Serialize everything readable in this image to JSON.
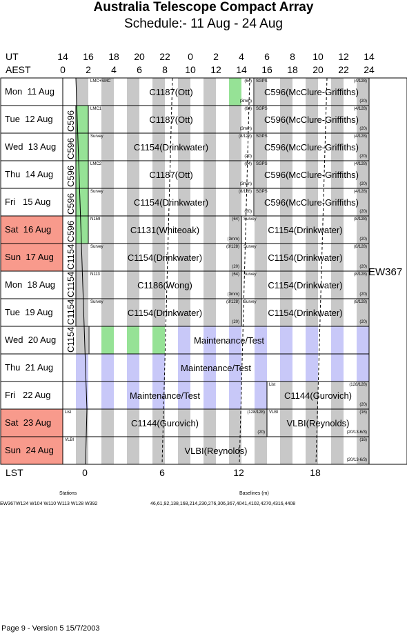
{
  "header": {
    "title": "Australia Telescope Compact Array",
    "subtitle": "Schedule:- 11 Aug - 24 Aug"
  },
  "axes": {
    "ut_label": "UT",
    "aest_label": "AEST",
    "lst_label": "LST",
    "ut_ticks": [
      "14",
      "16",
      "18",
      "20",
      "22",
      "0",
      "2",
      "4",
      "6",
      "8",
      "10",
      "12",
      "14"
    ],
    "aest_ticks": [
      "0",
      "2",
      "4",
      "6",
      "8",
      "10",
      "12",
      "14",
      "16",
      "18",
      "20",
      "22",
      "24"
    ],
    "lst_ticks": [
      "0",
      "6",
      "12",
      "18"
    ]
  },
  "days": [
    {
      "label": "Mon  11 Aug",
      "weekend": false
    },
    {
      "label": "Tue  12 Aug",
      "weekend": false
    },
    {
      "label": "Wed  13 Aug",
      "weekend": false
    },
    {
      "label": "Thu  14 Aug",
      "weekend": false
    },
    {
      "label": "Fri   15 Aug",
      "weekend": false
    },
    {
      "label": "Sat  16 Aug",
      "weekend": true
    },
    {
      "label": "Sun  17 Aug",
      "weekend": true
    },
    {
      "label": "Mon  18 Aug",
      "weekend": false
    },
    {
      "label": "Tue  19 Aug",
      "weekend": false
    },
    {
      "label": "Wed  20 Aug",
      "weekend": false
    },
    {
      "label": "Thu  21 Aug",
      "weekend": false
    },
    {
      "label": "Fri   22 Aug",
      "weekend": false
    },
    {
      "label": "Sat  23 Aug",
      "weekend": true
    },
    {
      "label": "Sun  24 Aug",
      "weekend": true
    }
  ],
  "projects": {
    "r0a": "C1187(Ott)",
    "r0b": "C596(McClure-Griffiths)",
    "r1a": "C1187(Ott)",
    "r1b": "C596(McClure-Griffiths)",
    "r2a": "C1154(Drinkwater)",
    "r2b": "C596(McClure-Griffiths)",
    "r3a": "C1187(Ott)",
    "r3b": "C596(McClure-Griffiths)",
    "r4a": "C1154(Drinkwater)",
    "r4b": "C596(McClure-Griffiths)",
    "r5a": "C1131(Whiteoak)",
    "r5b": "C1154(Drinkwater)",
    "r6a": "C1154(Drinkwater)",
    "r6b": "C1154(Drinkwater)",
    "r7a": "C1186(Wong)",
    "r7b": "C1154(Drinkwater)",
    "r8a": "C1154(Drinkwater)",
    "r8b": "C1154(Drinkwater)",
    "r9": "Maintenance/Test",
    "r10": "Maintenance/Test",
    "r11a": "Maintenance/Test",
    "r11b": "C1144(Gurovich)",
    "r12a": "C1144(Gurovich)",
    "r12b": "VLBI(Reynolds)",
    "r13": "VLBI(Reynolds)",
    "v1": "C596",
    "v2": "C596",
    "v3": "C596",
    "v4": "C596",
    "v5": "C596",
    "v6": "C1154",
    "v7": "C1154",
    "v8": "C1154",
    "v9": "C1154",
    "side": "EW367"
  },
  "tags": {
    "r0a": "LMC+SMC",
    "r0a_tr": "(64)",
    "r0a_br": "(3mm)",
    "r0b": "SGPS",
    "r0b_tr": "(4/128)",
    "r0b_br": "(20)",
    "r1a": "LMC1",
    "r1a_tr": "(64)",
    "r1a_br": "(3mm)",
    "r1b": "SGPS",
    "r1b_tr": "(4/128)",
    "r1b_br": "(20)",
    "r2a": "Survey",
    "r2a_tr": "(8/128)",
    "r2a_br": "(20)",
    "r2b": "SGPS",
    "r2b_tr": "(4/128)",
    "r2b_br": "(20)",
    "r3a": "LMC2",
    "r3a_tr": "(64)",
    "r3a_br": "(3mm)",
    "r3b": "SGPS",
    "r3b_tr": "(4/128)",
    "r3b_br": "(20)",
    "r4a": "Survey",
    "r4a_tr": "(8/128)",
    "r4a_br": "(20)",
    "r4b": "SGPS",
    "r4b_tr": "(4/128)",
    "r4b_br": "(20)",
    "r5a": "N159",
    "r5a_tr": "(64)",
    "r5a_br": "(3mm)",
    "r5b": "Survey",
    "r5b_tr": "(8/128)",
    "r5b_br": "(20)",
    "r6a": "Survey",
    "r6a_tr": "(8/128)",
    "r6a_br": "(20)",
    "r6b": "Survey",
    "r6b_tr": "(8/128)",
    "r6b_br": "(20)",
    "r7a": "N113",
    "r7a_tr": "(64)",
    "r7a_br": "(3mm)",
    "r7b": "Survey",
    "r7b_tr": "(8/128)",
    "r7b_br": "(20)",
    "r8a": "Survey",
    "r8a_tr": "(8/128)",
    "r8a_br": "(20)",
    "r8b": "Survey",
    "r8b_tr": "(8/128)",
    "r8b_br": "(20)",
    "r11b": "List",
    "r11b_tr": "(128/128)",
    "r11b_br": "(20)",
    "r12a": "List",
    "r12a_tr": "(128/128)",
    "r12a_br": "(20)",
    "r12b": "VLBI",
    "r12b_tr": "(16)",
    "r12b_br": "(20/13-6/3)",
    "r13": "VLBI",
    "r13_tr": "(16)",
    "r13_br": "(20/13-6/3)"
  },
  "footer": {
    "stations_title": "Stations",
    "stations_list": "EW367W124 W104 W110 W113 W128 W392",
    "baselines_title": "Baselines (m)",
    "baselines_list": "46,61,92,138,168,214,230,276,306,367,4041,4102,4270,4316,4408",
    "version": "Page 9 - Version 5  15/7/2003"
  },
  "colors": {
    "weekend": "#f89a8c",
    "maintenance": "#c8c8f8",
    "green": "#96e296",
    "gray": "#c8c8c8"
  }
}
